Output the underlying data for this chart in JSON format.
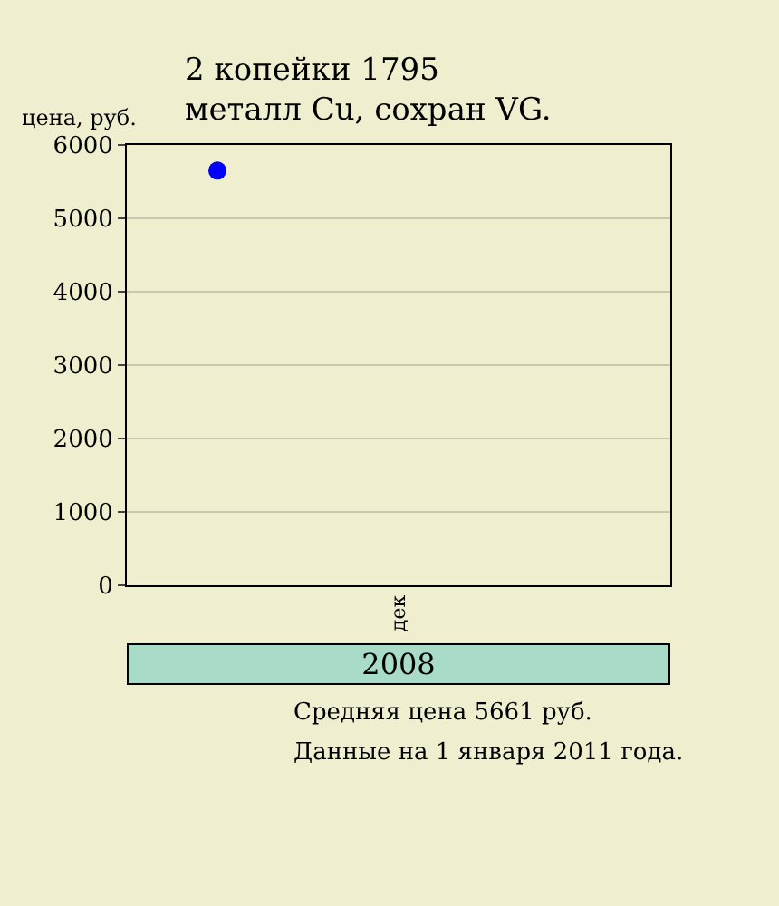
{
  "chart_data": {
    "type": "scatter",
    "title": "2 копейки 1795",
    "subtitle": "металл Cu, сохран VG.",
    "ylabel": "цена, руб.",
    "categories": [
      null,
      "дек",
      null
    ],
    "series": [
      {
        "color": "#0000ff",
        "values": [
          5650,
          null,
          null
        ]
      }
    ],
    "ylim": [
      0,
      6000
    ],
    "yticks": [
      0,
      1000,
      2000,
      3000,
      4000,
      5000,
      6000
    ],
    "grid": "y",
    "marker": "circle",
    "annotations": [
      "2008",
      "Средняя цена 5661 руб.",
      "Данные на 1 января 2011 года."
    ]
  }
}
